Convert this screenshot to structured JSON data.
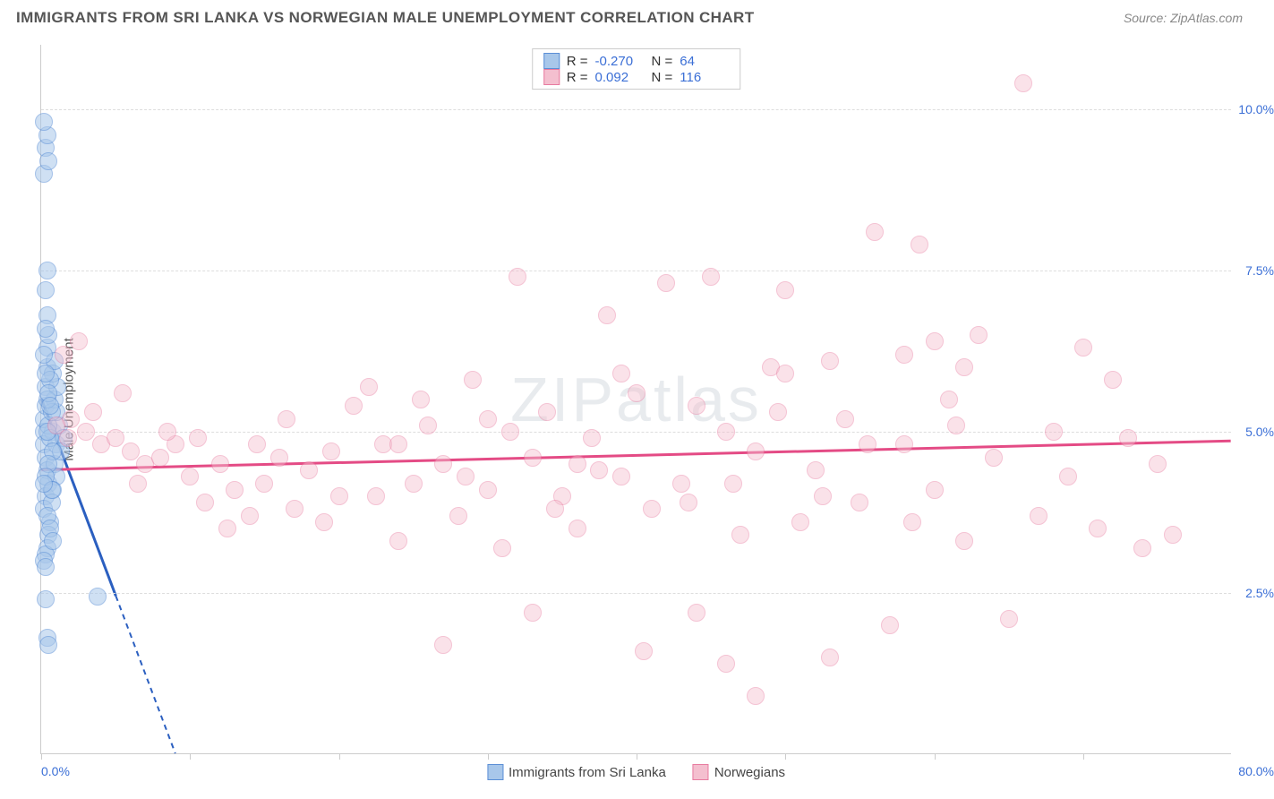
{
  "title": "IMMIGRANTS FROM SRI LANKA VS NORWEGIAN MALE UNEMPLOYMENT CORRELATION CHART",
  "source": "Source: ZipAtlas.com",
  "ylabel": "Male Unemployment",
  "watermark": "ZIPatlas",
  "chart": {
    "type": "scatter",
    "xlim": [
      0,
      80
    ],
    "ylim": [
      0,
      11
    ],
    "xlabel_min": "0.0%",
    "xlabel_max": "80.0%",
    "yticks": [
      {
        "v": 2.5,
        "label": "2.5%"
      },
      {
        "v": 5.0,
        "label": "5.0%"
      },
      {
        "v": 7.5,
        "label": "7.5%"
      },
      {
        "v": 10.0,
        "label": "10.0%"
      }
    ],
    "xticks": [
      0,
      10,
      20,
      30,
      40,
      50,
      60,
      70
    ],
    "marker_radius": 10,
    "background_color": "#ffffff",
    "grid_color": "#dddddd",
    "series": [
      {
        "name": "Immigrants from Sri Lanka",
        "fill": "#a8c7ea",
        "stroke": "#5b8fd6",
        "fill_opacity": 0.55,
        "regression": {
          "x1": 0,
          "y1": 5.5,
          "x2": 9,
          "y2": 0,
          "color": "#2b5fc0",
          "width": 3,
          "dash_after_plot": true
        },
        "stats": {
          "R": "-0.270",
          "N": "64"
        },
        "points": [
          [
            0.2,
            5.0
          ],
          [
            0.2,
            5.2
          ],
          [
            0.3,
            5.4
          ],
          [
            0.3,
            5.7
          ],
          [
            0.4,
            6.0
          ],
          [
            0.4,
            6.3
          ],
          [
            0.2,
            4.8
          ],
          [
            0.3,
            4.6
          ],
          [
            0.4,
            4.4
          ],
          [
            0.5,
            4.2
          ],
          [
            0.3,
            4.0
          ],
          [
            0.2,
            3.8
          ],
          [
            0.6,
            3.6
          ],
          [
            0.5,
            3.4
          ],
          [
            0.4,
            3.2
          ],
          [
            0.3,
            3.1
          ],
          [
            0.2,
            3.0
          ],
          [
            0.3,
            2.9
          ],
          [
            0.4,
            1.8
          ],
          [
            0.5,
            1.7
          ],
          [
            0.3,
            2.4
          ],
          [
            0.8,
            5.0
          ],
          [
            1.0,
            4.8
          ],
          [
            1.2,
            5.1
          ],
          [
            1.5,
            4.9
          ],
          [
            1.0,
            5.3
          ],
          [
            0.9,
            5.5
          ],
          [
            1.1,
            5.7
          ],
          [
            0.8,
            5.9
          ],
          [
            0.5,
            6.5
          ],
          [
            0.4,
            6.8
          ],
          [
            0.9,
            4.5
          ],
          [
            1.0,
            4.3
          ],
          [
            0.8,
            4.1
          ],
          [
            0.3,
            7.2
          ],
          [
            0.4,
            7.5
          ],
          [
            0.2,
            9.0
          ],
          [
            0.3,
            9.4
          ],
          [
            0.4,
            9.6
          ],
          [
            0.2,
            9.8
          ],
          [
            0.5,
            9.2
          ],
          [
            3.8,
            2.45
          ],
          [
            1.3,
            4.7
          ],
          [
            0.7,
            3.9
          ],
          [
            0.6,
            5.8
          ],
          [
            0.9,
            6.1
          ],
          [
            0.3,
            5.9
          ],
          [
            0.5,
            5.1
          ],
          [
            0.7,
            5.3
          ],
          [
            0.4,
            5.5
          ],
          [
            0.6,
            4.9
          ],
          [
            0.8,
            4.7
          ],
          [
            0.5,
            4.5
          ],
          [
            0.3,
            4.3
          ],
          [
            0.7,
            4.1
          ],
          [
            0.4,
            3.7
          ],
          [
            0.6,
            3.5
          ],
          [
            0.8,
            3.3
          ],
          [
            0.2,
            6.2
          ],
          [
            0.3,
            6.6
          ],
          [
            0.5,
            5.6
          ],
          [
            0.4,
            5.0
          ],
          [
            0.6,
            5.4
          ],
          [
            0.2,
            4.2
          ]
        ]
      },
      {
        "name": "Norwegians",
        "fill": "#f4bfcf",
        "stroke": "#e87ba0",
        "fill_opacity": 0.45,
        "regression": {
          "x1": 0,
          "y1": 4.4,
          "x2": 80,
          "y2": 4.85,
          "color": "#e44b85",
          "width": 3,
          "dash_after_plot": false
        },
        "stats": {
          "R": "0.092",
          "N": "116"
        },
        "points": [
          [
            2,
            5.2
          ],
          [
            3,
            5.0
          ],
          [
            4,
            4.8
          ],
          [
            5,
            4.9
          ],
          [
            6,
            4.7
          ],
          [
            7,
            4.5
          ],
          [
            8,
            4.6
          ],
          [
            9,
            4.8
          ],
          [
            10,
            4.3
          ],
          [
            11,
            3.9
          ],
          [
            12,
            4.5
          ],
          [
            13,
            4.1
          ],
          [
            14,
            3.7
          ],
          [
            15,
            4.2
          ],
          [
            16,
            4.6
          ],
          [
            17,
            3.8
          ],
          [
            18,
            4.4
          ],
          [
            19,
            3.6
          ],
          [
            20,
            4.0
          ],
          [
            21,
            5.4
          ],
          [
            22,
            5.7
          ],
          [
            23,
            4.8
          ],
          [
            24,
            3.3
          ],
          [
            25,
            4.2
          ],
          [
            26,
            5.1
          ],
          [
            27,
            4.5
          ],
          [
            28,
            3.7
          ],
          [
            29,
            5.8
          ],
          [
            30,
            4.1
          ],
          [
            31,
            3.2
          ],
          [
            32,
            7.4
          ],
          [
            33,
            4.6
          ],
          [
            34,
            5.3
          ],
          [
            35,
            4.0
          ],
          [
            36,
            3.5
          ],
          [
            37,
            4.9
          ],
          [
            38,
            6.8
          ],
          [
            39,
            4.3
          ],
          [
            40,
            5.6
          ],
          [
            41,
            3.8
          ],
          [
            42,
            7.3
          ],
          [
            43,
            4.2
          ],
          [
            44,
            2.2
          ],
          [
            45,
            7.4
          ],
          [
            46,
            5.0
          ],
          [
            47,
            3.4
          ],
          [
            48,
            4.7
          ],
          [
            49,
            6.0
          ],
          [
            50,
            7.2
          ],
          [
            51,
            3.6
          ],
          [
            52,
            4.4
          ],
          [
            53,
            1.5
          ],
          [
            54,
            5.2
          ],
          [
            55,
            3.9
          ],
          [
            56,
            8.1
          ],
          [
            57,
            2.0
          ],
          [
            58,
            4.8
          ],
          [
            59,
            7.9
          ],
          [
            60,
            4.1
          ],
          [
            61,
            5.5
          ],
          [
            62,
            3.3
          ],
          [
            63,
            6.5
          ],
          [
            64,
            4.6
          ],
          [
            65,
            2.1
          ],
          [
            66,
            10.4
          ],
          [
            67,
            3.7
          ],
          [
            68,
            5.0
          ],
          [
            69,
            4.3
          ],
          [
            70,
            6.3
          ],
          [
            71,
            3.5
          ],
          [
            72,
            5.8
          ],
          [
            73,
            4.9
          ],
          [
            74,
            3.2
          ],
          [
            75,
            4.5
          ],
          [
            76,
            3.4
          ],
          [
            1,
            5.1
          ],
          [
            1.5,
            6.2
          ],
          [
            2.5,
            6.4
          ],
          [
            1.8,
            4.9
          ],
          [
            3.5,
            5.3
          ],
          [
            5.5,
            5.6
          ],
          [
            6.5,
            4.2
          ],
          [
            8.5,
            5.0
          ],
          [
            10.5,
            4.9
          ],
          [
            12.5,
            3.5
          ],
          [
            14.5,
            4.8
          ],
          [
            16.5,
            5.2
          ],
          [
            19.5,
            4.7
          ],
          [
            22.5,
            4.0
          ],
          [
            25.5,
            5.5
          ],
          [
            28.5,
            4.3
          ],
          [
            31.5,
            5.0
          ],
          [
            34.5,
            3.8
          ],
          [
            37.5,
            4.4
          ],
          [
            40.5,
            1.6
          ],
          [
            43.5,
            3.9
          ],
          [
            46.5,
            4.2
          ],
          [
            49.5,
            5.3
          ],
          [
            52.5,
            4.0
          ],
          [
            55.5,
            4.8
          ],
          [
            58.5,
            3.6
          ],
          [
            61.5,
            5.1
          ],
          [
            46,
            1.4
          ],
          [
            48,
            0.9
          ],
          [
            58,
            6.2
          ],
          [
            60,
            6.4
          ],
          [
            33,
            2.2
          ],
          [
            36,
            4.5
          ],
          [
            27,
            1.7
          ],
          [
            50,
            5.9
          ],
          [
            53,
            6.1
          ],
          [
            44,
            5.4
          ],
          [
            39,
            5.9
          ],
          [
            24,
            4.8
          ],
          [
            30,
            5.2
          ],
          [
            62,
            6.0
          ]
        ]
      }
    ]
  },
  "bottom_legend": [
    "Immigrants from Sri Lanka",
    "Norwegians"
  ]
}
